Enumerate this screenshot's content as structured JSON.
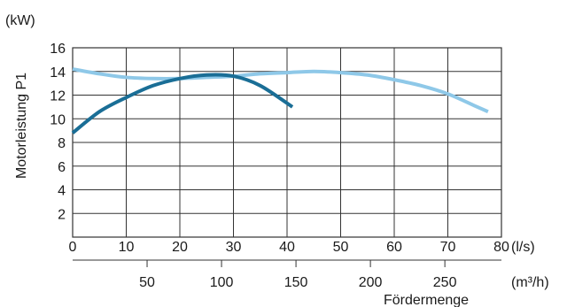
{
  "chart_data": {
    "type": "line",
    "ylabel": "Motorleistung P1",
    "y_unit": "(kW)",
    "x_unit": "(l/s)",
    "x2_unit": "(m³/h)",
    "xlabel": "Fördermenge",
    "ylim": [
      0,
      16
    ],
    "xlim": [
      0,
      80
    ],
    "y_ticks": [
      2,
      4,
      6,
      8,
      10,
      12,
      14,
      16
    ],
    "x_ticks": [
      0,
      10,
      20,
      30,
      40,
      50,
      60,
      70,
      80
    ],
    "x2_ticks": [
      50,
      100,
      150,
      200,
      250
    ],
    "grid": true,
    "colors": {
      "dark_series": "#1a6e96",
      "light_series": "#8ec8e8",
      "grid": "#333333"
    },
    "series": [
      {
        "color_key": "dark_series",
        "x": [
          0,
          5,
          10,
          15,
          20,
          25,
          30,
          35,
          41
        ],
        "y": [
          8.8,
          10.6,
          11.8,
          12.8,
          13.4,
          13.7,
          13.6,
          12.8,
          11.0
        ]
      },
      {
        "color_key": "light_series",
        "x": [
          0,
          5,
          10,
          15,
          20,
          25,
          30,
          35,
          40,
          45,
          50,
          55,
          60,
          65,
          70,
          75,
          77.5
        ],
        "y": [
          14.2,
          13.8,
          13.5,
          13.4,
          13.4,
          13.5,
          13.6,
          13.8,
          13.9,
          14.0,
          13.9,
          13.7,
          13.3,
          12.8,
          12.1,
          11.1,
          10.6
        ]
      }
    ]
  }
}
